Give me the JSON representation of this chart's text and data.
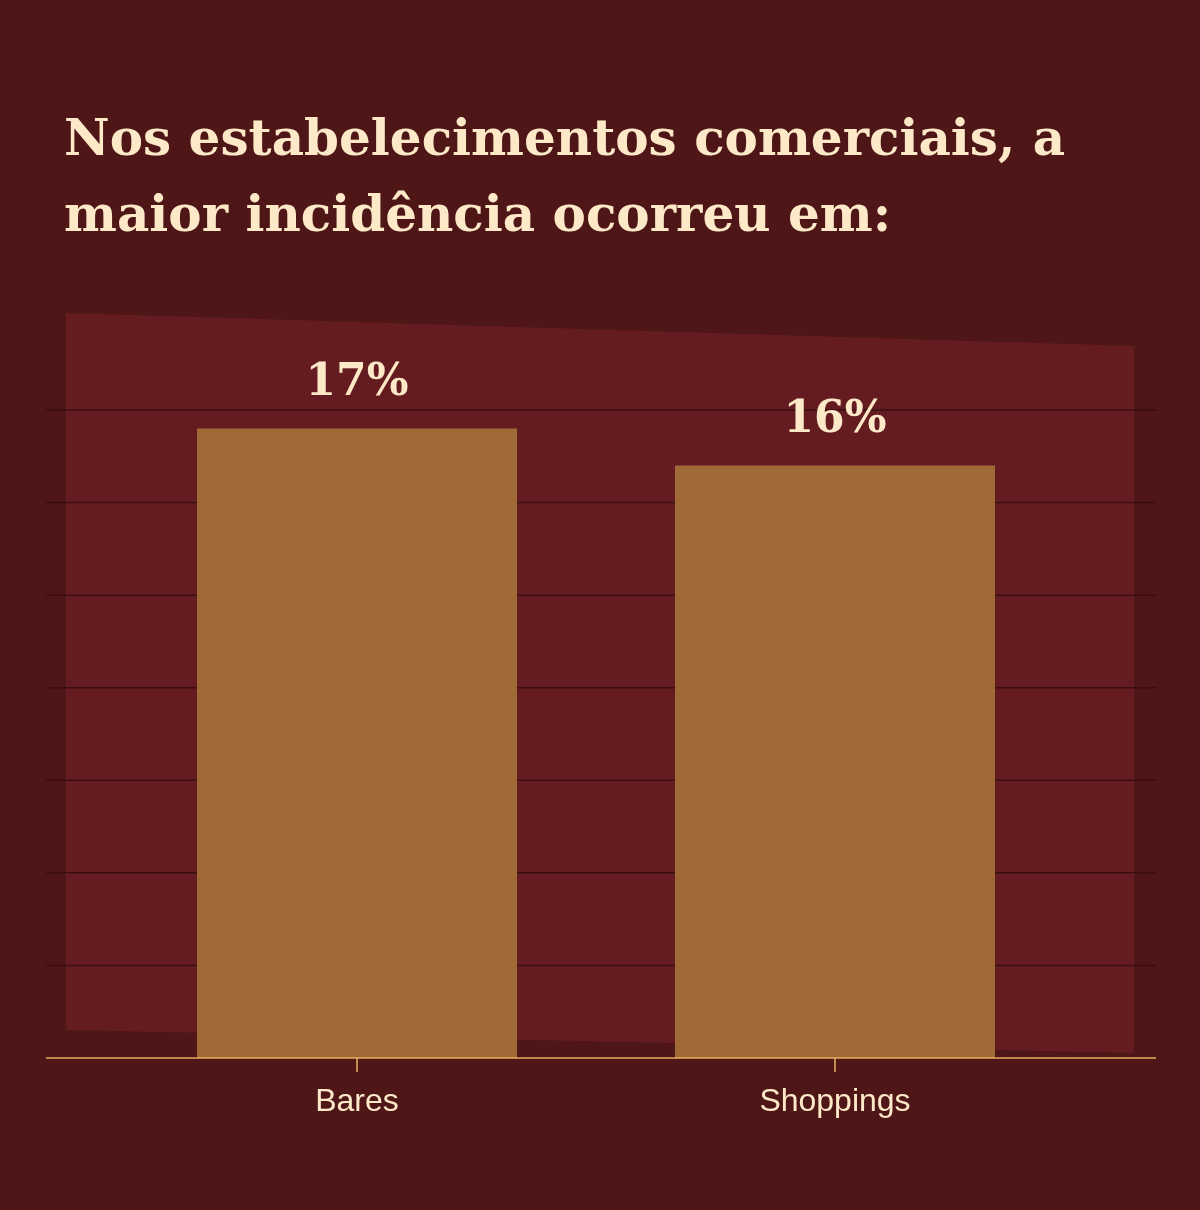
{
  "chart_data": {
    "type": "bar",
    "title": "Nos estabelecimentos comerciais, a maior incidência ocorreu em:",
    "categories": [
      "Bares",
      "Shoppings"
    ],
    "values": [
      17,
      16
    ],
    "value_labels": [
      "17%",
      "16%"
    ],
    "color": "#a06a38",
    "ylim": [
      0,
      17.5
    ],
    "yticks": [
      {
        "value": 2.5,
        "label": null
      },
      {
        "value": 5,
        "label": null
      },
      {
        "value": 7.5,
        "label": null
      },
      {
        "value": 10,
        "label": null
      },
      {
        "value": 12.5,
        "label": null
      },
      {
        "value": 15,
        "label": null
      },
      {
        "value": 17.5,
        "label": null
      }
    ],
    "grid": "y",
    "tick_labels": "x"
  }
}
